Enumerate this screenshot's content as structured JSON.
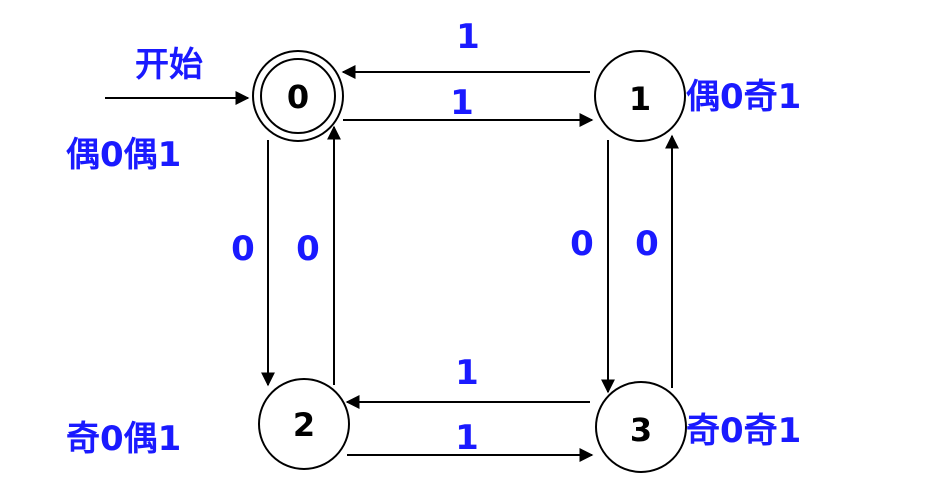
{
  "diagram": {
    "start_label": "开始",
    "states": [
      {
        "id": "0",
        "annotation": "偶0偶1",
        "accepting": true
      },
      {
        "id": "1",
        "annotation": "偶0奇1",
        "accepting": false
      },
      {
        "id": "2",
        "annotation": "奇0偶1",
        "accepting": false
      },
      {
        "id": "3",
        "annotation": "奇0奇1",
        "accepting": false
      }
    ],
    "transitions": [
      {
        "from": "1",
        "to": "0",
        "symbol": "1"
      },
      {
        "from": "0",
        "to": "1",
        "symbol": "1"
      },
      {
        "from": "0",
        "to": "2",
        "symbol": "0"
      },
      {
        "from": "2",
        "to": "0",
        "symbol": "0"
      },
      {
        "from": "1",
        "to": "3",
        "symbol": "0"
      },
      {
        "from": "3",
        "to": "1",
        "symbol": "0"
      },
      {
        "from": "3",
        "to": "2",
        "symbol": "1"
      },
      {
        "from": "2",
        "to": "3",
        "symbol": "1"
      }
    ]
  },
  "colors": {
    "label": "#1a1aff",
    "line": "#000000",
    "state_text": "#000000"
  }
}
